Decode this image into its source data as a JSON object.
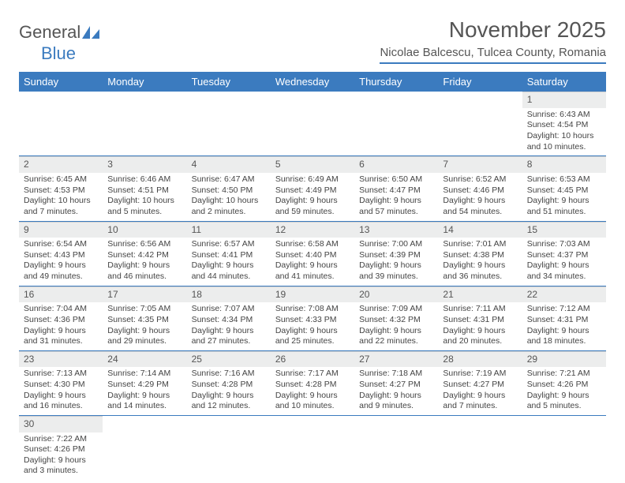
{
  "logo": {
    "text1": "General",
    "text2": "Blue"
  },
  "title": "November 2025",
  "location": "Nicolae Balcescu, Tulcea County, Romania",
  "colors": {
    "accent": "#3b7bbf",
    "header_bg": "#3b7bbf",
    "daynum_bg": "#eceded",
    "text": "#444"
  },
  "weekdays": [
    "Sunday",
    "Monday",
    "Tuesday",
    "Wednesday",
    "Thursday",
    "Friday",
    "Saturday"
  ],
  "weeks": [
    [
      null,
      null,
      null,
      null,
      null,
      null,
      {
        "n": "1",
        "sr": "Sunrise: 6:43 AM",
        "ss": "Sunset: 4:54 PM",
        "dl": "Daylight: 10 hours and 10 minutes."
      }
    ],
    [
      {
        "n": "2",
        "sr": "Sunrise: 6:45 AM",
        "ss": "Sunset: 4:53 PM",
        "dl": "Daylight: 10 hours and 7 minutes."
      },
      {
        "n": "3",
        "sr": "Sunrise: 6:46 AM",
        "ss": "Sunset: 4:51 PM",
        "dl": "Daylight: 10 hours and 5 minutes."
      },
      {
        "n": "4",
        "sr": "Sunrise: 6:47 AM",
        "ss": "Sunset: 4:50 PM",
        "dl": "Daylight: 10 hours and 2 minutes."
      },
      {
        "n": "5",
        "sr": "Sunrise: 6:49 AM",
        "ss": "Sunset: 4:49 PM",
        "dl": "Daylight: 9 hours and 59 minutes."
      },
      {
        "n": "6",
        "sr": "Sunrise: 6:50 AM",
        "ss": "Sunset: 4:47 PM",
        "dl": "Daylight: 9 hours and 57 minutes."
      },
      {
        "n": "7",
        "sr": "Sunrise: 6:52 AM",
        "ss": "Sunset: 4:46 PM",
        "dl": "Daylight: 9 hours and 54 minutes."
      },
      {
        "n": "8",
        "sr": "Sunrise: 6:53 AM",
        "ss": "Sunset: 4:45 PM",
        "dl": "Daylight: 9 hours and 51 minutes."
      }
    ],
    [
      {
        "n": "9",
        "sr": "Sunrise: 6:54 AM",
        "ss": "Sunset: 4:43 PM",
        "dl": "Daylight: 9 hours and 49 minutes."
      },
      {
        "n": "10",
        "sr": "Sunrise: 6:56 AM",
        "ss": "Sunset: 4:42 PM",
        "dl": "Daylight: 9 hours and 46 minutes."
      },
      {
        "n": "11",
        "sr": "Sunrise: 6:57 AM",
        "ss": "Sunset: 4:41 PM",
        "dl": "Daylight: 9 hours and 44 minutes."
      },
      {
        "n": "12",
        "sr": "Sunrise: 6:58 AM",
        "ss": "Sunset: 4:40 PM",
        "dl": "Daylight: 9 hours and 41 minutes."
      },
      {
        "n": "13",
        "sr": "Sunrise: 7:00 AM",
        "ss": "Sunset: 4:39 PM",
        "dl": "Daylight: 9 hours and 39 minutes."
      },
      {
        "n": "14",
        "sr": "Sunrise: 7:01 AM",
        "ss": "Sunset: 4:38 PM",
        "dl": "Daylight: 9 hours and 36 minutes."
      },
      {
        "n": "15",
        "sr": "Sunrise: 7:03 AM",
        "ss": "Sunset: 4:37 PM",
        "dl": "Daylight: 9 hours and 34 minutes."
      }
    ],
    [
      {
        "n": "16",
        "sr": "Sunrise: 7:04 AM",
        "ss": "Sunset: 4:36 PM",
        "dl": "Daylight: 9 hours and 31 minutes."
      },
      {
        "n": "17",
        "sr": "Sunrise: 7:05 AM",
        "ss": "Sunset: 4:35 PM",
        "dl": "Daylight: 9 hours and 29 minutes."
      },
      {
        "n": "18",
        "sr": "Sunrise: 7:07 AM",
        "ss": "Sunset: 4:34 PM",
        "dl": "Daylight: 9 hours and 27 minutes."
      },
      {
        "n": "19",
        "sr": "Sunrise: 7:08 AM",
        "ss": "Sunset: 4:33 PM",
        "dl": "Daylight: 9 hours and 25 minutes."
      },
      {
        "n": "20",
        "sr": "Sunrise: 7:09 AM",
        "ss": "Sunset: 4:32 PM",
        "dl": "Daylight: 9 hours and 22 minutes."
      },
      {
        "n": "21",
        "sr": "Sunrise: 7:11 AM",
        "ss": "Sunset: 4:31 PM",
        "dl": "Daylight: 9 hours and 20 minutes."
      },
      {
        "n": "22",
        "sr": "Sunrise: 7:12 AM",
        "ss": "Sunset: 4:31 PM",
        "dl": "Daylight: 9 hours and 18 minutes."
      }
    ],
    [
      {
        "n": "23",
        "sr": "Sunrise: 7:13 AM",
        "ss": "Sunset: 4:30 PM",
        "dl": "Daylight: 9 hours and 16 minutes."
      },
      {
        "n": "24",
        "sr": "Sunrise: 7:14 AM",
        "ss": "Sunset: 4:29 PM",
        "dl": "Daylight: 9 hours and 14 minutes."
      },
      {
        "n": "25",
        "sr": "Sunrise: 7:16 AM",
        "ss": "Sunset: 4:28 PM",
        "dl": "Daylight: 9 hours and 12 minutes."
      },
      {
        "n": "26",
        "sr": "Sunrise: 7:17 AM",
        "ss": "Sunset: 4:28 PM",
        "dl": "Daylight: 9 hours and 10 minutes."
      },
      {
        "n": "27",
        "sr": "Sunrise: 7:18 AM",
        "ss": "Sunset: 4:27 PM",
        "dl": "Daylight: 9 hours and 9 minutes."
      },
      {
        "n": "28",
        "sr": "Sunrise: 7:19 AM",
        "ss": "Sunset: 4:27 PM",
        "dl": "Daylight: 9 hours and 7 minutes."
      },
      {
        "n": "29",
        "sr": "Sunrise: 7:21 AM",
        "ss": "Sunset: 4:26 PM",
        "dl": "Daylight: 9 hours and 5 minutes."
      }
    ],
    [
      {
        "n": "30",
        "sr": "Sunrise: 7:22 AM",
        "ss": "Sunset: 4:26 PM",
        "dl": "Daylight: 9 hours and 3 minutes."
      },
      null,
      null,
      null,
      null,
      null,
      null
    ]
  ]
}
